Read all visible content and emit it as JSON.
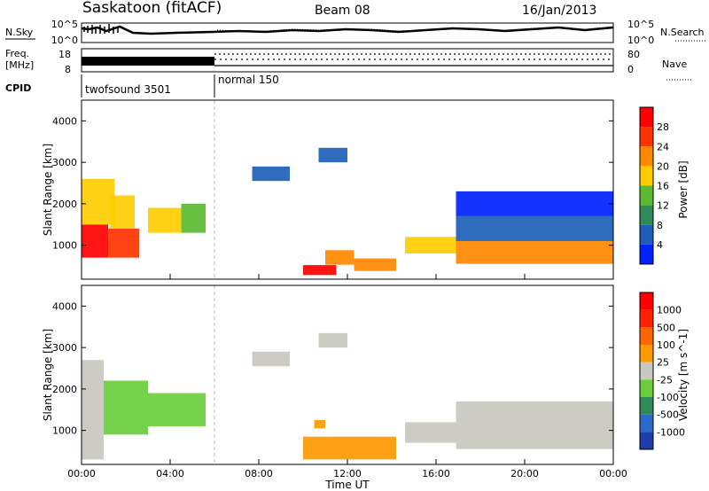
{
  "header": {
    "site": "Saskatoon (fitACF)",
    "beam": "Beam 08",
    "date": "16/Jan/2013"
  },
  "aux_panels": {
    "nsky_label": "N.Sky",
    "nsky_ticks": [
      "10^5",
      "10^0"
    ],
    "nsearch_label": "N.Search",
    "nsearch_ticks": [
      "10^5",
      "10^0"
    ],
    "freq_label_1": "Freq.",
    "freq_label_2": "[MHz]",
    "freq_ticks": [
      "18",
      "8"
    ],
    "nave_label": "Nave",
    "nave_ticks": [
      "80",
      "0"
    ],
    "cpid_label": "CPID",
    "cpid_modes": [
      {
        "name": "twofsound 3501",
        "start_hour": 0
      },
      {
        "name": "normal 150",
        "start_hour": 6
      }
    ]
  },
  "chart_data": [
    {
      "type": "heatmap",
      "title": "",
      "xlabel": "",
      "ylabel": "Slant Range [km]",
      "xlim": [
        0,
        24
      ],
      "ylim": [
        180,
        4500
      ],
      "yticks": [
        "1000",
        "2000",
        "3000",
        "4000"
      ],
      "colorbar_label": "Power [dB]",
      "colorbar_ticks": [
        "4",
        "8",
        "12",
        "16",
        "20",
        "24",
        "28"
      ],
      "colorbar_colors": [
        "#0022ff",
        "#1d5fb8",
        "#2e8b57",
        "#5aba32",
        "#ffcc00",
        "#ff8800",
        "#ff3300",
        "#ff0000"
      ],
      "regions": [
        {
          "t0": 0.0,
          "t1": 1.2,
          "r0": 700,
          "r1": 1500,
          "level": 7
        },
        {
          "t0": 1.2,
          "t1": 2.6,
          "r0": 700,
          "r1": 1400,
          "level": 6
        },
        {
          "t0": 0.0,
          "t1": 1.5,
          "r0": 1500,
          "r1": 2600,
          "level": 4
        },
        {
          "t0": 1.3,
          "t1": 2.4,
          "r0": 1400,
          "r1": 2200,
          "level": 4
        },
        {
          "t0": 3.0,
          "t1": 4.5,
          "r0": 1300,
          "r1": 1900,
          "level": 4
        },
        {
          "t0": 4.5,
          "t1": 5.6,
          "r0": 1300,
          "r1": 2000,
          "level": 3
        },
        {
          "t0": 7.7,
          "t1": 9.4,
          "r0": 2550,
          "r1": 2900,
          "level": 1
        },
        {
          "t0": 10.7,
          "t1": 12.0,
          "r0": 3000,
          "r1": 3350,
          "level": 1
        },
        {
          "t0": 10.0,
          "t1": 11.5,
          "r0": 280,
          "r1": 520,
          "level": 7
        },
        {
          "t0": 11.0,
          "t1": 12.3,
          "r0": 530,
          "r1": 880,
          "level": 5
        },
        {
          "t0": 12.3,
          "t1": 14.2,
          "r0": 380,
          "r1": 680,
          "level": 5
        },
        {
          "t0": 14.6,
          "t1": 16.9,
          "r0": 800,
          "r1": 1200,
          "level": 4
        },
        {
          "t0": 16.9,
          "t1": 24.0,
          "r0": 550,
          "r1": 1100,
          "level": 5
        },
        {
          "t0": 16.9,
          "t1": 24.0,
          "r0": 1100,
          "r1": 1700,
          "level": 1
        },
        {
          "t0": 16.9,
          "t1": 24.0,
          "r0": 1700,
          "r1": 2300,
          "level": 0
        }
      ]
    },
    {
      "type": "heatmap",
      "title": "",
      "xlabel": "Time UT",
      "ylabel": "Slant Range [km]",
      "xlim": [
        0,
        24
      ],
      "ylim": [
        180,
        4500
      ],
      "xticks": [
        "00:00",
        "04:00",
        "08:00",
        "12:00",
        "16:00",
        "20:00",
        "00:00"
      ],
      "yticks": [
        "1000",
        "2000",
        "3000",
        "4000"
      ],
      "colorbar_label": "Velocity [m s^-1]",
      "colorbar_ticks": [
        "1000",
        "500",
        "100",
        "25",
        "-25",
        "-100",
        "-500",
        "-1000"
      ],
      "colorbar_colors": [
        "#1e3caa",
        "#2a6ac8",
        "#2e8b57",
        "#6acd3c",
        "#c8c8c0",
        "#ff9900",
        "#ff6600",
        "#ff2200",
        "#ff0000"
      ],
      "regions": [
        {
          "t0": 0.0,
          "t1": 1.0,
          "r0": 300,
          "r1": 2700,
          "level": 4
        },
        {
          "t0": 1.0,
          "t1": 3.0,
          "r0": 900,
          "r1": 2200,
          "level": 3
        },
        {
          "t0": 3.0,
          "t1": 5.6,
          "r0": 1100,
          "r1": 1900,
          "level": 3
        },
        {
          "t0": 7.7,
          "t1": 9.4,
          "r0": 2550,
          "r1": 2900,
          "level": 4
        },
        {
          "t0": 10.7,
          "t1": 12.0,
          "r0": 3000,
          "r1": 3350,
          "level": 4
        },
        {
          "t0": 10.5,
          "t1": 11.0,
          "r0": 1050,
          "r1": 1250,
          "level": 5
        },
        {
          "t0": 10.0,
          "t1": 14.2,
          "r0": 300,
          "r1": 850,
          "level": 5
        },
        {
          "t0": 14.6,
          "t1": 16.9,
          "r0": 700,
          "r1": 1200,
          "level": 4
        },
        {
          "t0": 16.9,
          "t1": 24.0,
          "r0": 550,
          "r1": 1700,
          "level": 4
        }
      ]
    }
  ]
}
